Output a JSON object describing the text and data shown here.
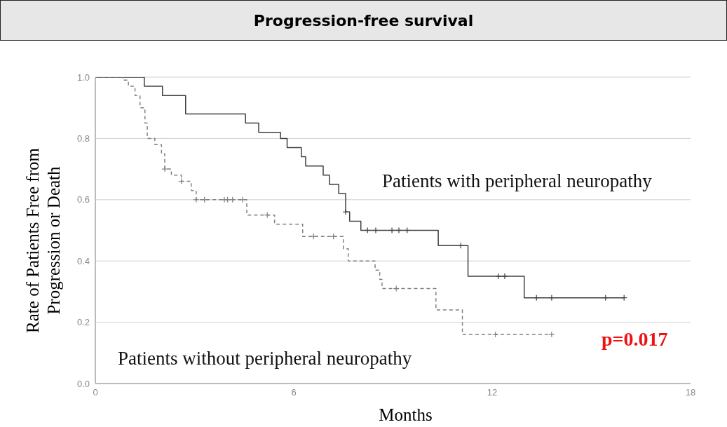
{
  "chart_data": {
    "type": "step",
    "title": "Progression-free survival",
    "xlabel": "Months",
    "ylabel": "Rate of Patients Free from Progression or Death",
    "annotations": [
      "p=0.017"
    ],
    "xlim": [
      0,
      18
    ],
    "xticks": [
      0,
      6,
      12,
      18
    ],
    "ylim": [
      0,
      1
    ],
    "yticks": [
      {
        "value": 0,
        "label": "0.0"
      },
      0.2,
      0.4,
      0.6,
      0.8,
      {
        "value": 1,
        "label": "1.0"
      }
    ],
    "grid": "y",
    "legend": false,
    "series": [
      {
        "name": "Patients with peripheral neuropathy",
        "color": "#404040",
        "line_style": "solid",
        "x": [
          0,
          1.48,
          2.03,
          2.73,
          4.54,
          4.94,
          5.6,
          5.8,
          6.23,
          6.36,
          6.89,
          7.08,
          7.36,
          7.57,
          7.69,
          8.03,
          10.37,
          11.27,
          12.97,
          15.99
        ],
        "values": [
          1,
          0.97,
          0.94,
          0.88,
          0.85,
          0.82,
          0.8,
          0.77,
          0.74,
          0.71,
          0.68,
          0.65,
          0.62,
          0.56,
          0.53,
          0.5,
          0.45,
          0.35,
          0.28,
          0.28
        ]
      },
      {
        "name": "Patients without peripheral neuropathy",
        "color": "#808080",
        "line_style": "dashed",
        "x": [
          0,
          0.83,
          1.0,
          1.2,
          1.35,
          1.5,
          1.57,
          1.8,
          2.0,
          2.1,
          2.3,
          2.6,
          2.9,
          3.05,
          4.58,
          5.42,
          6.27,
          7.5,
          7.65,
          8.46,
          8.6,
          8.67,
          10.3,
          11.1,
          13.8
        ],
        "values": [
          1,
          0.99,
          0.97,
          0.94,
          0.9,
          0.85,
          0.8,
          0.78,
          0.75,
          0.7,
          0.68,
          0.66,
          0.63,
          0.6,
          0.55,
          0.52,
          0.48,
          0.44,
          0.4,
          0.37,
          0.34,
          0.31,
          0.24,
          0.16,
          0.16
        ]
      },
      {
        "type": "scatter",
        "marker": "cross",
        "color": "#404040",
        "x": [
          7.57,
          8.23,
          8.48,
          8.97,
          9.18,
          9.43,
          11.05,
          12.19,
          12.38,
          13.34,
          13.8,
          15.43,
          15.99
        ],
        "values": [
          0.56,
          0.5,
          0.5,
          0.5,
          0.5,
          0.5,
          0.45,
          0.35,
          0.35,
          0.28,
          0.28,
          0.28,
          0.28
        ]
      },
      {
        "type": "scatter",
        "marker": "cross",
        "color": "#808080",
        "x": [
          2.1,
          2.6,
          3.05,
          3.3,
          3.9,
          4.0,
          4.15,
          4.45,
          5.2,
          6.6,
          7.2,
          9.1,
          12.1,
          13.8
        ],
        "values": [
          0.7,
          0.66,
          0.6,
          0.6,
          0.6,
          0.6,
          0.6,
          0.6,
          0.55,
          0.48,
          0.48,
          0.31,
          0.16,
          0.16
        ]
      }
    ]
  }
}
